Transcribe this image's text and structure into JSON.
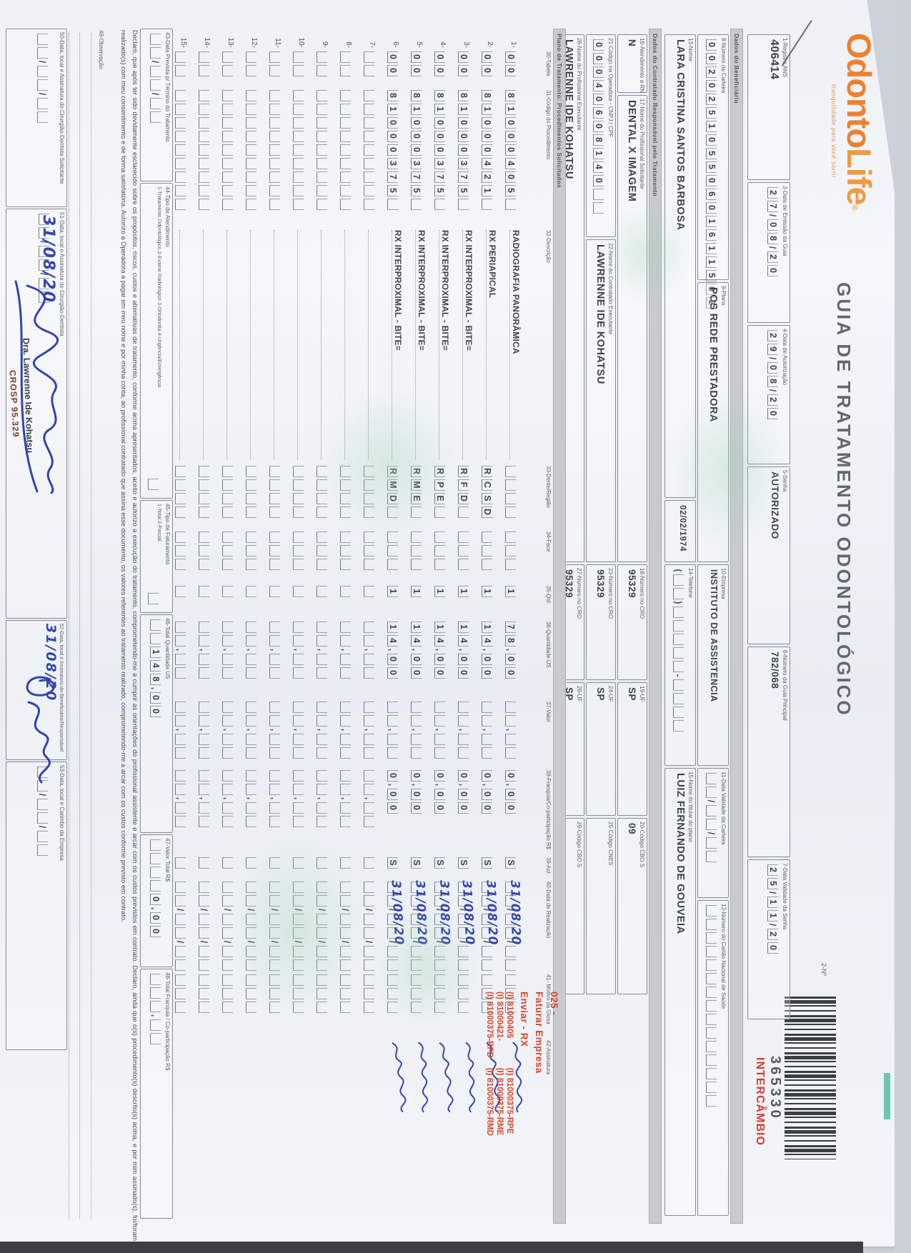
{
  "colors": {
    "brand_orange": "#ed8130",
    "red_intercambio": "#dd392a",
    "red_note": "#da4527",
    "ink_blue": "#3347ae",
    "stamp_red": "#82362b",
    "teal_mark": "#57bf9f",
    "paper": "#f3f5f9"
  },
  "brand": {
    "logo_part1": "Odonto",
    "logo_part2": "Life",
    "registered": "®",
    "tagline": "tranquilidade para você sorrir"
  },
  "title": "GUIA DE TRATAMENTO ODONTOLÓGICO",
  "guide": {
    "number_label": "2-Nº",
    "number": "365330",
    "tag": "INTERCÂMBIO",
    "barcode": "barcode"
  },
  "header_fields": {
    "registro_ans": {
      "label": "1-Registro ANS",
      "value": "406414"
    },
    "data_emissao": {
      "label": "3-Data de Emissão da Guia",
      "value": "27/08/20"
    },
    "data_autorizacao": {
      "label": "4-Data de Autorização",
      "value": "29/08/20"
    },
    "senha": {
      "label": "5-Senha",
      "value": "AUTORIZADO"
    },
    "guia_principal": {
      "label": "6-Número da Guia Principal",
      "value": "782/068"
    },
    "validade_senha": {
      "label": "7-Data Validade da Senha",
      "value": "25/11/20"
    }
  },
  "beneficiario": {
    "section_title": "Dados do Beneficiário",
    "numero_carteira": {
      "label": "8-Número da Carteira",
      "value": "00202510550601611502"
    },
    "plano": {
      "label": "9-Plano",
      "value": "POS REDE PRESTADORA"
    },
    "empresa": {
      "label": "10-Empresa",
      "value": "INSTITUTO DE ASSISTENCIA"
    },
    "validade_carteira": {
      "label": "11-Data Validade da Carteira",
      "value": "  /  /  "
    },
    "cartao_nacional": {
      "label": "12-Número do Cartão Nacional de Saúde",
      "value": "               "
    },
    "nome": {
      "label": "13-Nome",
      "value": "LARA CRISTINA SANTOS BARBOSA"
    },
    "nascimento": {
      "label": "",
      "value": "02/02/1974"
    },
    "telefone": {
      "label": "14-Telefone",
      "value": "(  )     -    "
    },
    "titular": {
      "label": "15-Nome do titular do plano",
      "value": "LUIZ FERNANDO DE GOUVEIA"
    }
  },
  "contratado": {
    "section_title": "Dados do Contratado Responsável pelo Tratamento",
    "atendimento_rn": {
      "label": "16-Atendimento a RN",
      "value": "N"
    },
    "solicitante": {
      "label": "17-Nome do Profissional Solicitante",
      "value": "DENTAL X IMAGEM"
    },
    "cro18": {
      "label": "18-Número no CRO",
      "value": "95329"
    },
    "uf19": {
      "label": "19-UF",
      "value": "SP"
    },
    "cbo20": {
      "label": "20-Código CBO S",
      "value": "09"
    },
    "codigo_operadora": {
      "label": "21-Código na Operadora - CNPJ / CPF",
      "value": "00040608140  "
    },
    "contratado_executante": {
      "label": "22-Nome do Contratado Executante",
      "value": "LAWRENNE IDE KOHATSU"
    },
    "cro23": {
      "label": "23-Número no CRO",
      "value": "95329"
    },
    "uf24": {
      "label": "24-UF",
      "value": "SP"
    },
    "cnes25": {
      "label": "25-Código CNES",
      "value": ""
    },
    "profissional_executante": {
      "label": "26-Nome do Profissional Executante",
      "value": "LAWRENNE IDE KOHATSU"
    },
    "cro27": {
      "label": "27-Número no CRO",
      "value": "95329"
    },
    "uf28": {
      "label": "28-UF",
      "value": "SP"
    },
    "cbo29": {
      "label": "29-Código CBO S",
      "value": ""
    }
  },
  "red_note": {
    "lines": [
      "025 -",
      "Faturar Empresa",
      "Enviar - RX"
    ],
    "codes": [
      [
        "(I) 81000405",
        "(I) 81000375-RPE"
      ],
      [
        "(I) 81000421-",
        "(I) 81000375-RME"
      ],
      [
        "(I) 81000375-RFD",
        "(I) 81000375-RMD"
      ]
    ]
  },
  "table": {
    "section_title": "Plano de Tratamento: Procedimentos Solicitados",
    "headers": {
      "n": "",
      "tab": "30-Tabela",
      "cod": "31-Código do Procedimento",
      "desc": "32-Descrição",
      "reg": "33-Dente/Região",
      "face": "34-Face",
      "qtd": "35-Qtd",
      "us": "36-Quantidade US",
      "val": "37-Valor",
      "fr": "38-Franquia/Co-participação R$",
      "aut": "39-Aut",
      "dt": "40-Data de Realização",
      "gl": "41- Motivo da Glosa",
      "sg": "42-Assinatura"
    },
    "rows": [
      {
        "n": "1-",
        "tab": "00",
        "cod": "81000405 ",
        "desc": "RADIOGRAFIA PANORÂMICA",
        "reg": "    ",
        "face": "   ",
        "qtd": "1",
        "us": "78,00",
        "val": "  ,  ",
        "fr": "0,00",
        "aut": "S",
        "dt": "  /  /  ",
        "hw": "31/08/20",
        "gl": "   ",
        "sig": true
      },
      {
        "n": "2-",
        "tab": "00",
        "cod": "81000421 ",
        "desc": "RX PERIAPICAL",
        "reg": "RCSD",
        "face": "   ",
        "qtd": "1",
        "us": "14,00",
        "val": "  ,  ",
        "fr": "0,00",
        "aut": "S",
        "dt": "  /  /  ",
        "hw": "31/08/20",
        "gl": "   ",
        "sig": true
      },
      {
        "n": "3-",
        "tab": "00",
        "cod": "81000375 ",
        "desc": "RX INTERPROXIMAL - BITE=",
        "reg": "RFD ",
        "face": "   ",
        "qtd": "1",
        "us": "14,00",
        "val": "  ,  ",
        "fr": "0,00",
        "aut": "S",
        "dt": "  /  /  ",
        "hw": "31/08/20",
        "gl": "   ",
        "sig": true
      },
      {
        "n": "4-",
        "tab": "00",
        "cod": "81000375 ",
        "desc": "RX INTERPROXIMAL - BITE=",
        "reg": "RPE ",
        "face": "   ",
        "qtd": "1",
        "us": "14,00",
        "val": "  ,  ",
        "fr": "0,00",
        "aut": "S",
        "dt": "  /  /  ",
        "hw": "31/08/20",
        "gl": "   ",
        "sig": true
      },
      {
        "n": "5-",
        "tab": "00",
        "cod": "81000375 ",
        "desc": "RX INTERPROXIMAL - BITE=",
        "reg": "RME ",
        "face": "   ",
        "qtd": "1",
        "us": "14,00",
        "val": "  ,  ",
        "fr": "0,00",
        "aut": "S",
        "dt": "  /  /  ",
        "hw": "31/08/20",
        "gl": "   ",
        "sig": true
      },
      {
        "n": "6-",
        "tab": "00",
        "cod": "81000375 ",
        "desc": "RX INTERPROXIMAL - BITE=",
        "reg": "RMD ",
        "face": "   ",
        "qtd": "1",
        "us": "14,00",
        "val": "  ,  ",
        "fr": "0,00",
        "aut": "S",
        "dt": "  /  /  ",
        "hw": "31/08/20",
        "gl": "   ",
        "sig": true
      },
      {
        "n": "7-",
        "tab": "  ",
        "cod": "         ",
        "desc": "",
        "reg": "    ",
        "face": "   ",
        "qtd": " ",
        "us": "  ,  ",
        "val": "  ,  ",
        "fr": "  ,  ",
        "aut": " ",
        "dt": "  /  /  ",
        "hw": "",
        "gl": "   ",
        "sig": false
      },
      {
        "n": "8-",
        "tab": "  ",
        "cod": "         ",
        "desc": "",
        "reg": "    ",
        "face": "   ",
        "qtd": " ",
        "us": "  ,  ",
        "val": "  ,  ",
        "fr": "  ,  ",
        "aut": " ",
        "dt": "  /  /  ",
        "hw": "",
        "gl": "   ",
        "sig": false
      },
      {
        "n": "9-",
        "tab": "  ",
        "cod": "         ",
        "desc": "",
        "reg": "    ",
        "face": "   ",
        "qtd": " ",
        "us": "  ,  ",
        "val": "  ,  ",
        "fr": "  ,  ",
        "aut": " ",
        "dt": "  /  /  ",
        "hw": "",
        "gl": "   ",
        "sig": false
      },
      {
        "n": "10-",
        "tab": "  ",
        "cod": "         ",
        "desc": "",
        "reg": "    ",
        "face": "   ",
        "qtd": " ",
        "us": "  ,  ",
        "val": "  ,  ",
        "fr": "  ,  ",
        "aut": " ",
        "dt": "  /  /  ",
        "hw": "",
        "gl": "   ",
        "sig": false
      },
      {
        "n": "11-",
        "tab": "  ",
        "cod": "         ",
        "desc": "",
        "reg": "    ",
        "face": "   ",
        "qtd": " ",
        "us": "  ,  ",
        "val": "  ,  ",
        "fr": "  ,  ",
        "aut": " ",
        "dt": "  /  /  ",
        "hw": "",
        "gl": "   ",
        "sig": false
      },
      {
        "n": "12-",
        "tab": "  ",
        "cod": "         ",
        "desc": "",
        "reg": "    ",
        "face": "   ",
        "qtd": " ",
        "us": "  ,  ",
        "val": "  ,  ",
        "fr": "  ,  ",
        "aut": " ",
        "dt": "  /  /  ",
        "hw": "",
        "gl": "   ",
        "sig": false
      },
      {
        "n": "13-",
        "tab": "  ",
        "cod": "         ",
        "desc": "",
        "reg": "    ",
        "face": "   ",
        "qtd": " ",
        "us": "  ,  ",
        "val": "  ,  ",
        "fr": "  ,  ",
        "aut": " ",
        "dt": "  /  /  ",
        "hw": "",
        "gl": "   ",
        "sig": false
      },
      {
        "n": "14-",
        "tab": "  ",
        "cod": "         ",
        "desc": "",
        "reg": "    ",
        "face": "   ",
        "qtd": " ",
        "us": "  ,  ",
        "val": "  ,  ",
        "fr": "  ,  ",
        "aut": " ",
        "dt": "  /  /  ",
        "hw": "",
        "gl": "   ",
        "sig": false
      },
      {
        "n": "15-",
        "tab": "  ",
        "cod": "         ",
        "desc": "",
        "reg": "    ",
        "face": "   ",
        "qtd": " ",
        "us": "  ,  ",
        "val": "  ,  ",
        "fr": "  ,  ",
        "aut": " ",
        "dt": "  /  /  ",
        "hw": "",
        "gl": "   ",
        "sig": false
      }
    ]
  },
  "totals": {
    "data_prevista": {
      "label": "43-Data Prevista p/ Término do Tratamento",
      "value": "  /  /  "
    },
    "tipo_atendimento": {
      "label": "44-Tipo de Atendimento",
      "legend": "1-Tratamento Odontológico  2-Exame Radiológico  3-Ortodontia  4-Urgência/Emergência",
      "value": " "
    },
    "tipo_faturamento": {
      "label": "45-Tipo de Faturamento",
      "legend": "1-Total  2-Parcial",
      "value": " "
    },
    "total_us": {
      "label": "46-Total Quantidade US",
      "value": "  148,00"
    },
    "valor_total": {
      "label": "47-Valor Total R$",
      "value": "    0,00"
    },
    "total_franquia": {
      "label": "48-Total Franquia / Co-participação R$",
      "value": "   ,  "
    }
  },
  "declaration": {
    "line1": "Declaro, que após ter sido devidamente esclarecido sobre os propósitos, riscos, custos e alternativas de tratamento, conforme acima apresentados, aceito e autorizo a execução do tratamento, comprometendo-me a cumprir as orientações do profissional assistente e arcar com os custos previstos em",
    "line2": "contrato. Declaro, ainda que o(s) procedimento(s) descrito(s) acima, e por mim assinado(s), foi/foram realizado(s) com meu consentimento e de forma satisfatória. Autorizo a Operadora a pagar em meu nome e por minha conta, ao profissional contratado que assina esse documento, os valores",
    "line3": "referentes ao tratamento realizado, comprometendo-me a arcar com os custos conforme previsto em contrato."
  },
  "observacao": {
    "label": "49-Observação"
  },
  "signatures": {
    "s50": {
      "label": "50-Data, local e Assinatura do Cirurgião-Dentista Solicitante",
      "date": "  /  /  "
    },
    "s51": {
      "label": "51-Data, local e Assinatura do Cirurgião-Dentista",
      "date": "  /  /  ",
      "handwritten_date": "31/08/20",
      "stamp_name": "Dra. Lawrenne Ide Kohatsu",
      "stamp_cro": "CROSP 95.329"
    },
    "s52": {
      "label": "52-Data, local e Assinatura do Beneficiário/Responsável",
      "date": "  /  /  ",
      "handwritten_date": "31/08/20"
    },
    "s53": {
      "label": "53-Data, local e Carimbo da Empresa",
      "date": "  /  /  "
    }
  }
}
